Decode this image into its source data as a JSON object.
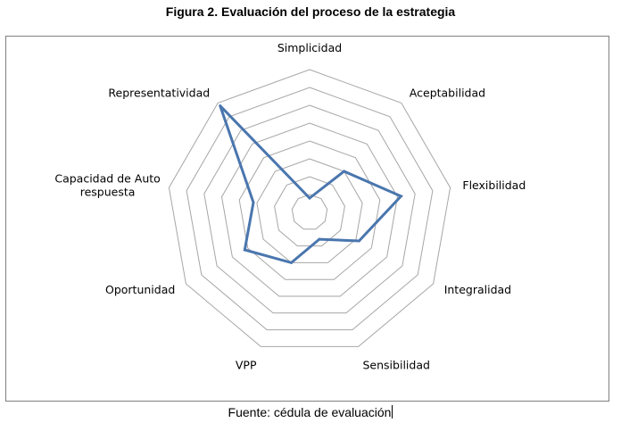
{
  "figure": {
    "title": "Figura 2. Evaluación del proceso de la estrategia",
    "caption": "Fuente: cédula de evaluación"
  },
  "chart_data": {
    "type": "radar",
    "categories": [
      "Simplicidad",
      "Aceptabilidad",
      "Flexibilidad",
      "Integralidad",
      "Sensibilidad",
      "VPP",
      "Oportunidad",
      "Capacidad de Auto respuesta",
      "Representatividad"
    ],
    "category_lines": [
      [
        "Simplicidad"
      ],
      [
        "Aceptabilidad"
      ],
      [
        "Flexibilidad"
      ],
      [
        "Integralidad"
      ],
      [
        "Sensibilidad"
      ],
      [
        "VPP"
      ],
      [
        "Oportunidad"
      ],
      [
        "Capacidad de Auto",
        "respuesta"
      ],
      [
        "Representatividad"
      ]
    ],
    "series": [
      {
        "values": [
          0.8,
          3,
          5.2,
          3.2,
          1.6,
          3,
          4.2,
          3.2,
          7.8
        ]
      }
    ],
    "rlim": [
      0,
      8
    ],
    "grid_rings": 8,
    "colors": {
      "series": "#4a76ae",
      "grid": "#a6a6a6",
      "frame": "#808080"
    }
  }
}
